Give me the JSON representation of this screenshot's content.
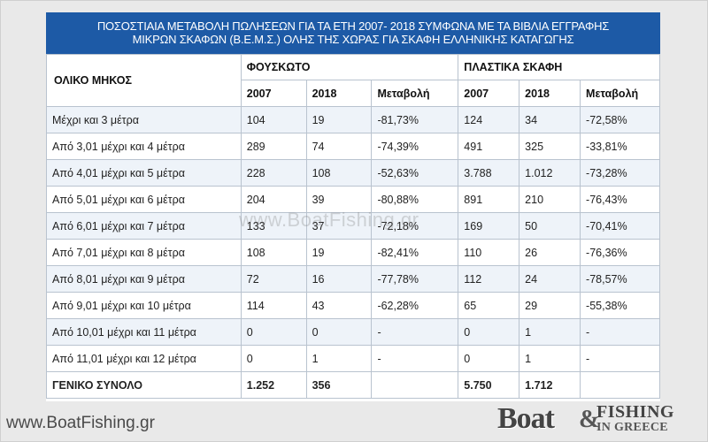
{
  "title": {
    "line1": "ΠΟΣΟΣΤΙΑΙΑ ΜΕΤΑΒΟΛΗ ΠΩΛΗΣΕΩΝ ΓΙΑ ΤΑ ΕΤΗ 2007- 2018 ΣΥΜΦΩΝΑ ΜΕ ΤΑ ΒΙΒΛΙΑ ΕΓΓΡΑΦΗΣ",
    "line2": "ΜΙΚΡΩΝ ΣΚΑΦΩΝ (Β.Ε.Μ.Σ.) ΟΛΗΣ ΤΗΣ ΧΩΡΑΣ ΓΙΑ ΣΚΑΦΗ ΕΛΛΗΝΙΚΗΣ ΚΑΤΑΓΩΓΗΣ"
  },
  "table": {
    "length_header": "ΟΛΙΚΟ ΜΗΚΟΣ",
    "group_inflatable": "ΦΟΥΣΚΩΤΟ",
    "group_plastic": "ΠΛΑΣΤΙΚΑ ΣΚΑΦΗ",
    "sub": [
      "2007",
      "2018",
      "Μεταβολή",
      "2007",
      "2018",
      "Μεταβολή"
    ],
    "rows": [
      [
        "Μέχρι και 3 μέτρα",
        "104",
        "19",
        "-81,73%",
        "124",
        "34",
        "-72,58%"
      ],
      [
        "Από 3,01 μέχρι και 4 μέτρα",
        "289",
        "74",
        "-74,39%",
        "491",
        "325",
        "-33,81%"
      ],
      [
        "Από 4,01 μέχρι και 5 μέτρα",
        "228",
        "108",
        "-52,63%",
        "3.788",
        "1.012",
        "-73,28%"
      ],
      [
        "Από 5,01 μέχρι και 6 μέτρα",
        "204",
        "39",
        "-80,88%",
        "891",
        "210",
        "-76,43%"
      ],
      [
        "Από 6,01 μέχρι και 7 μέτρα",
        "133",
        "37",
        "-72,18%",
        "169",
        "50",
        "-70,41%"
      ],
      [
        "Από 7,01 μέχρι και 8 μέτρα",
        "108",
        "19",
        "-82,41%",
        "110",
        "26",
        "-76,36%"
      ],
      [
        "Από 8,01 μέχρι και 9 μέτρα",
        "72",
        "16",
        "-77,78%",
        "112",
        "24",
        "-78,57%"
      ],
      [
        "Από 9,01 μέχρι και 10 μέτρα",
        "114",
        "43",
        "-62,28%",
        "65",
        "29",
        "-55,38%"
      ],
      [
        "Από 10,01 μέχρι και 11 μέτρα",
        "0",
        "0",
        "-",
        "0",
        "1",
        "-"
      ],
      [
        "Από 11,01 μέχρι και 12 μέτρα",
        "0",
        "1",
        "-",
        "0",
        "1",
        "-"
      ]
    ],
    "total": [
      "ΓΕΝΙΚΟ ΣΥΝΟΛΟ",
      "1.252",
      "356",
      "",
      "5.750",
      "1.712",
      ""
    ]
  },
  "watermark": "www.BoatFishing.gr",
  "footer_site": "www.BoatFishing.gr",
  "logo": {
    "boat": "Boat",
    "amp": "&",
    "fishing": "FISHING",
    "ingreece": "IN GREECE"
  },
  "colors": {
    "title_bg": "#1d5aa6",
    "stripe": "#eef3f9",
    "border": "#b9c3cf"
  }
}
